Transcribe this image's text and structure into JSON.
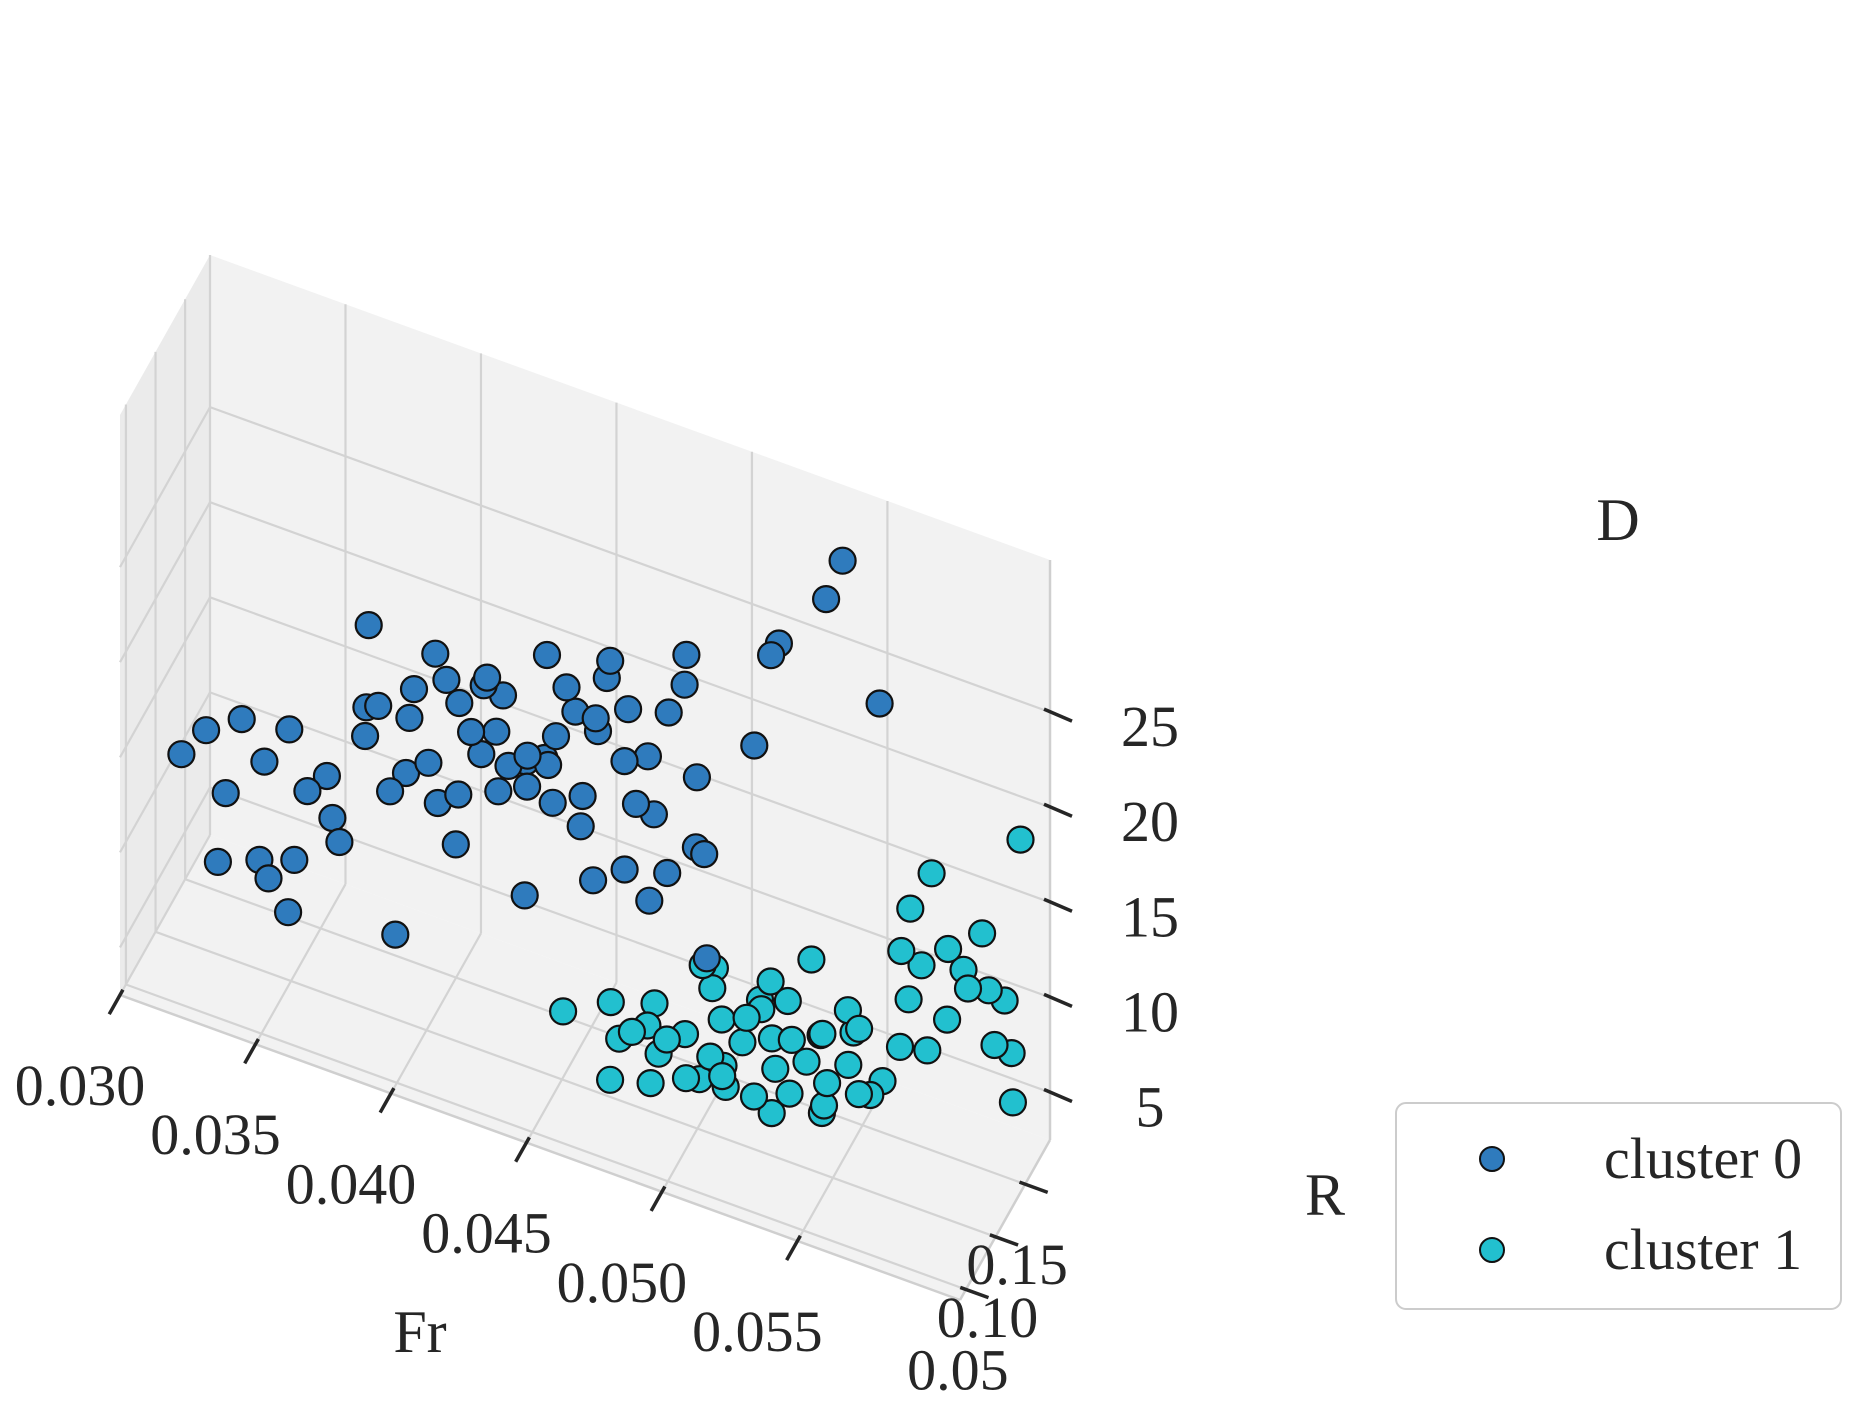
{
  "chart_data": {
    "type": "scatter",
    "projection": "3d",
    "title": "",
    "xlabel": "Fr",
    "ylabel": "R",
    "zlabel": "D",
    "x_ticks": [
      "0.030",
      "0.035",
      "0.040",
      "0.045",
      "0.050",
      "0.055"
    ],
    "y_ticks": [
      "0.05",
      "0.10",
      "0.15"
    ],
    "z_ticks": [
      "5",
      "10",
      "15",
      "20",
      "25"
    ],
    "grid": true,
    "legend_position": "bottom-right",
    "series": [
      {
        "name": "cluster 0",
        "color": "#2f7bbd",
        "points": [
          [
            0.0315,
            0.075,
            14.0
          ],
          [
            0.0325,
            0.071,
            16.0
          ],
          [
            0.0332,
            0.072,
            13.0
          ],
          [
            0.0334,
            0.09,
            16.0
          ],
          [
            0.0345,
            0.078,
            15.0
          ],
          [
            0.0352,
            0.088,
            16.5
          ],
          [
            0.0358,
            0.069,
            11.0
          ],
          [
            0.036,
            0.082,
            14.0
          ],
          [
            0.0365,
            0.092,
            14.5
          ],
          [
            0.0372,
            0.081,
            12.0
          ],
          [
            0.0378,
            0.097,
            17.0
          ],
          [
            0.038,
            0.09,
            19.0
          ],
          [
            0.0385,
            0.087,
            19.5
          ],
          [
            0.0387,
            0.098,
            14.5
          ],
          [
            0.0392,
            0.102,
            15.5
          ],
          [
            0.0395,
            0.094,
            19.0
          ],
          [
            0.0398,
            0.088,
            21.0
          ],
          [
            0.0402,
            0.094,
            17.0
          ],
          [
            0.0402,
            0.11,
            14.0
          ],
          [
            0.0405,
            0.092,
            23.0
          ],
          [
            0.0408,
            0.097,
            21.5
          ],
          [
            0.0411,
            0.105,
            20.0
          ],
          [
            0.0415,
            0.085,
            16.5
          ],
          [
            0.0418,
            0.093,
            19.5
          ],
          [
            0.042,
            0.101,
            18.0
          ],
          [
            0.0422,
            0.096,
            22.0
          ],
          [
            0.0425,
            0.088,
            23.0
          ],
          [
            0.0428,
            0.101,
            21.5
          ],
          [
            0.0432,
            0.092,
            18.5
          ],
          [
            0.0435,
            0.108,
            18.0
          ],
          [
            0.0438,
            0.096,
            17.5
          ],
          [
            0.0441,
            0.083,
            20.0
          ],
          [
            0.0444,
            0.104,
            18.5
          ],
          [
            0.0446,
            0.093,
            25.0
          ],
          [
            0.0448,
            0.099,
            20.5
          ],
          [
            0.0451,
            0.103,
            23.0
          ],
          [
            0.0453,
            0.109,
            21.5
          ],
          [
            0.0455,
            0.112,
            17.0
          ],
          [
            0.0458,
            0.095,
            16.5
          ],
          [
            0.046,
            0.115,
            20.5
          ],
          [
            0.0462,
            0.102,
            22.0
          ],
          [
            0.0465,
            0.107,
            24.0
          ],
          [
            0.0468,
            0.099,
            25.5
          ],
          [
            0.047,
            0.114,
            19.5
          ],
          [
            0.0472,
            0.111,
            22.5
          ],
          [
            0.0474,
            0.096,
            15.0
          ],
          [
            0.0476,
            0.106,
            18.0
          ],
          [
            0.0478,
            0.117,
            20.0
          ],
          [
            0.048,
            0.118,
            17.0
          ],
          [
            0.0482,
            0.101,
            13.5
          ],
          [
            0.0485,
            0.12,
            22.5
          ],
          [
            0.049,
            0.124,
            24.0
          ],
          [
            0.0492,
            0.118,
            26.0
          ],
          [
            0.0495,
            0.122,
            19.5
          ],
          [
            0.0486,
            0.113,
            14.5
          ],
          [
            0.0503,
            0.102,
            11.5
          ],
          [
            0.0512,
            0.141,
            21.0
          ],
          [
            0.0518,
            0.142,
            26.0
          ],
          [
            0.052,
            0.146,
            26.5
          ],
          [
            0.0535,
            0.157,
            29.0
          ],
          [
            0.054,
            0.162,
            31.0
          ],
          [
            0.0492,
            0.134,
            15.0
          ],
          [
            0.0553,
            0.165,
            24.0
          ],
          [
            0.0499,
            0.116,
            16.0
          ],
          [
            0.0458,
            0.116,
            12.5
          ],
          [
            0.0438,
            0.092,
            12.0
          ],
          [
            0.0392,
            0.084,
            8.0
          ],
          [
            0.0352,
            0.086,
            7.0
          ],
          [
            0.0344,
            0.074,
            10.0
          ],
          [
            0.033,
            0.068,
            9.5
          ],
          [
            0.035,
            0.062,
            10.0
          ],
          [
            0.044,
            0.116,
            18.0
          ],
          [
            0.0447,
            0.098,
            17.0
          ],
          [
            0.0369,
            0.083,
            13.0
          ],
          [
            0.0413,
            0.09,
            13.5
          ],
          [
            0.0378,
            0.103,
            22.5
          ],
          [
            0.043,
            0.084,
            17.5
          ],
          [
            0.0424,
            0.108,
            19.0
          ]
        ]
      },
      {
        "name": "cluster 1",
        "color": "#22c0cf",
        "points": [
          [
            0.0455,
            0.079,
            7.5
          ],
          [
            0.0468,
            0.1,
            7.5
          ],
          [
            0.0472,
            0.096,
            6.0
          ],
          [
            0.0478,
            0.09,
            7.0
          ],
          [
            0.048,
            0.107,
            6.5
          ],
          [
            0.0485,
            0.103,
            5.5
          ],
          [
            0.0486,
            0.085,
            5.0
          ],
          [
            0.049,
            0.094,
            7.0
          ],
          [
            0.0493,
            0.111,
            6.5
          ],
          [
            0.0496,
            0.099,
            5.0
          ],
          [
            0.0498,
            0.118,
            10.0
          ],
          [
            0.05,
            0.125,
            8.5
          ],
          [
            0.0503,
            0.108,
            6.0
          ],
          [
            0.0505,
            0.118,
            7.5
          ],
          [
            0.0507,
            0.112,
            5.5
          ],
          [
            0.051,
            0.096,
            6.0
          ],
          [
            0.0512,
            0.121,
            6.5
          ],
          [
            0.0514,
            0.119,
            8.0
          ],
          [
            0.0517,
            0.13,
            8.0
          ],
          [
            0.052,
            0.104,
            5.0
          ],
          [
            0.0522,
            0.125,
            7.0
          ],
          [
            0.0525,
            0.117,
            6.0
          ],
          [
            0.0527,
            0.129,
            9.0
          ],
          [
            0.053,
            0.122,
            7.5
          ],
          [
            0.0532,
            0.109,
            5.5
          ],
          [
            0.0535,
            0.124,
            6.5
          ],
          [
            0.0538,
            0.134,
            7.5
          ],
          [
            0.054,
            0.128,
            8.0
          ],
          [
            0.0543,
            0.117,
            5.0
          ],
          [
            0.0545,
            0.113,
            6.5
          ],
          [
            0.0547,
            0.139,
            9.0
          ],
          [
            0.055,
            0.126,
            7.0
          ],
          [
            0.0552,
            0.135,
            8.5
          ],
          [
            0.0555,
            0.121,
            6.0
          ],
          [
            0.0557,
            0.131,
            5.5
          ],
          [
            0.056,
            0.138,
            6.0
          ],
          [
            0.0563,
            0.156,
            12.0
          ],
          [
            0.0565,
            0.162,
            14.0
          ],
          [
            0.0567,
            0.15,
            10.0
          ],
          [
            0.057,
            0.158,
            11.5
          ],
          [
            0.0572,
            0.166,
            16.0
          ],
          [
            0.0575,
            0.145,
            8.0
          ],
          [
            0.0577,
            0.171,
            12.0
          ],
          [
            0.0579,
            0.16,
            9.0
          ],
          [
            0.0582,
            0.174,
            11.0
          ],
          [
            0.0585,
            0.168,
            10.5
          ],
          [
            0.0588,
            0.178,
            13.0
          ],
          [
            0.059,
            0.18,
            10.0
          ],
          [
            0.0593,
            0.176,
            7.5
          ],
          [
            0.0595,
            0.184,
            9.5
          ],
          [
            0.0598,
            0.182,
            7.0
          ],
          [
            0.06,
            0.188,
            18.0
          ],
          [
            0.0602,
            0.166,
            5.5
          ],
          [
            0.0546,
            0.153,
            7.0
          ],
          [
            0.0497,
            0.117,
            4.0
          ],
          [
            0.052,
            0.132,
            9.5
          ],
          [
            0.0532,
            0.146,
            10.5
          ],
          [
            0.048,
            0.119,
            7.0
          ],
          [
            0.0508,
            0.111,
            4.5
          ],
          [
            0.0473,
            0.076,
            5.0
          ],
          [
            0.0515,
            0.137,
            8.0
          ],
          [
            0.0499,
            0.134,
            9.0
          ],
          [
            0.0525,
            0.111,
            4.0
          ],
          [
            0.0566,
            0.14,
            8.0
          ],
          [
            0.0542,
            0.118,
            4.5
          ]
        ]
      }
    ]
  }
}
